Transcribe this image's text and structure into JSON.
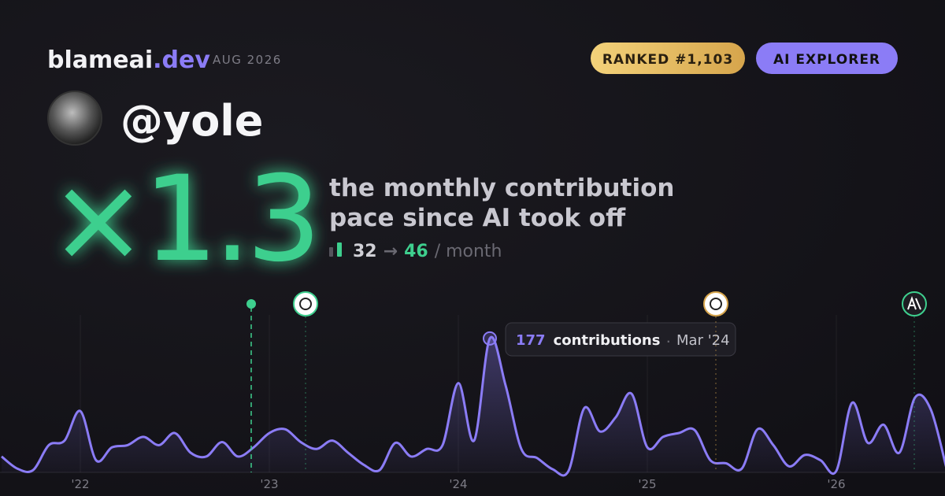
{
  "header": {
    "brand": "blameai",
    "brand_tld": ".dev",
    "date": "AUG 2026",
    "badges": [
      "RANKED #1,103",
      "AI EXPLORER"
    ]
  },
  "profile": {
    "handle": "@yole"
  },
  "hero": {
    "multiplier": "×1.3",
    "description": [
      "the monthly contribution",
      "pace since AI took off"
    ],
    "before": 32,
    "arrow": "→",
    "after": 46,
    "unit": "/ month"
  },
  "chart_data": {
    "type": "line",
    "categories": [
      null,
      null,
      null,
      null,
      null,
      "'22",
      null,
      null,
      null,
      null,
      null,
      null,
      null,
      null,
      null,
      null,
      null,
      "'23",
      null,
      null,
      null,
      null,
      null,
      null,
      null,
      null,
      null,
      null,
      null,
      "'24",
      null,
      null,
      null,
      null,
      null,
      null,
      null,
      null,
      null,
      null,
      null,
      "'25",
      null,
      null,
      null,
      null,
      null,
      null,
      null,
      null,
      null,
      null,
      null,
      "'26",
      null,
      null,
      null,
      null,
      null,
      null,
      null
    ],
    "series": [
      {
        "name": "contributions",
        "color": "#8b7cf6",
        "values": [
          21,
          5,
          3,
          36,
          42,
          81,
          16,
          33,
          36,
          47,
          36,
          52,
          26,
          21,
          40,
          21,
          33,
          52,
          57,
          40,
          31,
          42,
          26,
          10,
          3,
          39,
          21,
          31,
          36,
          118,
          42,
          177,
          115,
          31,
          19,
          4,
          2,
          85,
          54,
          73,
          104,
          33,
          47,
          52,
          56,
          16,
          12,
          5,
          57,
          36,
          8,
          23,
          16,
          2,
          92,
          39,
          63,
          26,
          99,
          83,
          5
        ]
      }
    ],
    "ylim": [
      0,
      180
    ],
    "tooltip": {
      "label": "contributions",
      "date": "Mar '24"
    }
  }
}
